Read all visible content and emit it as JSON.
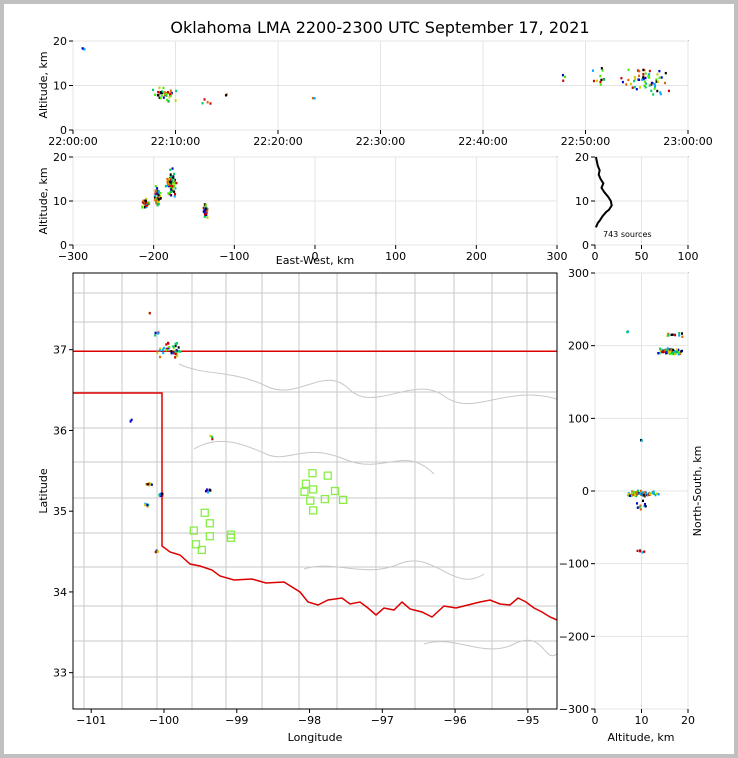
{
  "title": "Oklahoma LMA 2200-2300 UTC September 17, 2021",
  "colors": {
    "state_border": "#dd0000",
    "county_border": "#c8c8c8",
    "station": "#88ee44",
    "hist_line": "#000000",
    "source_palette": [
      "#0000cc",
      "#00aaff",
      "#00cc66",
      "#44ee00",
      "#cccc00",
      "#dd6600",
      "#cc0000",
      "#000000"
    ]
  },
  "chart_data": [
    {
      "id": "time_height",
      "type": "scatter",
      "ylabel": "Altitude, km",
      "ylim": [
        0,
        20
      ],
      "yticks": [
        0,
        10,
        20
      ],
      "xlim_min": [
        0,
        60
      ],
      "xtick_labels": [
        "22:00:00",
        "22:10:00",
        "22:20:00",
        "22:30:00",
        "22:40:00",
        "22:50:00",
        "23:00:00"
      ],
      "xtick_min": [
        0,
        10,
        20,
        30,
        40,
        50,
        60
      ],
      "clusters": [
        {
          "x": 1,
          "y": 18,
          "dx": 0.2,
          "dy": 0.5,
          "n": 3
        },
        {
          "x": 9,
          "y": 8,
          "dx": 1.6,
          "dy": 2.2,
          "n": 40
        },
        {
          "x": 13,
          "y": 6,
          "dx": 0.6,
          "dy": 1.5,
          "n": 4
        },
        {
          "x": 15,
          "y": 8,
          "dx": 0.5,
          "dy": 0.5,
          "n": 2
        },
        {
          "x": 23.5,
          "y": 7,
          "dx": 0.2,
          "dy": 0.4,
          "n": 2
        },
        {
          "x": 48,
          "y": 12,
          "dx": 0.3,
          "dy": 1.5,
          "n": 3
        },
        {
          "x": 51.5,
          "y": 12,
          "dx": 1.0,
          "dy": 3.0,
          "n": 12
        },
        {
          "x": 56,
          "y": 11,
          "dx": 2.8,
          "dy": 4.0,
          "n": 60
        }
      ]
    },
    {
      "id": "ew_altitude",
      "type": "scatter",
      "xlabel": "East-West, km",
      "ylabel": "Altitude, km",
      "xlim": [
        -300,
        300
      ],
      "ylim": [
        0,
        20
      ],
      "xticks": [
        -300,
        -200,
        -100,
        0,
        100,
        200,
        300
      ],
      "yticks": [
        0,
        10,
        20
      ],
      "clusters": [
        {
          "x": -210,
          "y": 9.5,
          "dx": 7,
          "dy": 1.2,
          "n": 40
        },
        {
          "x": -195,
          "y": 11,
          "dx": 6,
          "dy": 3.5,
          "n": 40
        },
        {
          "x": -178,
          "y": 14,
          "dx": 8,
          "dy": 4,
          "n": 70
        },
        {
          "x": -136,
          "y": 8,
          "dx": 4,
          "dy": 2.2,
          "n": 45
        }
      ]
    },
    {
      "id": "altitude_histogram",
      "type": "line",
      "annotation": "743 sources",
      "xlim": [
        0,
        100
      ],
      "ylim": [
        0,
        20
      ],
      "xticks": [
        0,
        50,
        100
      ],
      "yticks": [
        0,
        10,
        20
      ],
      "points": [
        [
          1,
          4
        ],
        [
          3,
          5
        ],
        [
          5,
          5.5
        ],
        [
          8,
          6.5
        ],
        [
          12,
          7.5
        ],
        [
          15,
          8
        ],
        [
          18,
          9
        ],
        [
          17,
          10
        ],
        [
          14,
          11
        ],
        [
          10,
          12
        ],
        [
          7,
          13
        ],
        [
          9,
          14
        ],
        [
          6,
          15
        ],
        [
          4,
          16
        ],
        [
          5,
          17
        ],
        [
          3,
          18
        ],
        [
          2,
          19
        ],
        [
          1,
          20
        ]
      ]
    },
    {
      "id": "plan_view",
      "type": "scatter",
      "xlabel": "Longitude",
      "ylabel": "Latitude",
      "xlim": [
        -101.25,
        -94.6
      ],
      "ylim": [
        32.55,
        37.95
      ],
      "xticks": [
        -101,
        -100,
        -99,
        -98,
        -97,
        -96,
        -95
      ],
      "yticks": [
        33,
        34,
        35,
        36,
        37
      ],
      "clusters": [
        {
          "x": -99.95,
          "y": 37.0,
          "dx": 0.25,
          "dy": 0.15,
          "n": 35
        },
        {
          "x": -100.1,
          "y": 37.2,
          "dx": 0.05,
          "dy": 0.05,
          "n": 4
        },
        {
          "x": -100.2,
          "y": 37.45,
          "dx": 0.05,
          "dy": 0.05,
          "n": 2
        },
        {
          "x": -100.45,
          "y": 36.12,
          "dx": 0.03,
          "dy": 0.03,
          "n": 2
        },
        {
          "x": -99.35,
          "y": 35.9,
          "dx": 0.05,
          "dy": 0.04,
          "n": 4
        },
        {
          "x": -100.2,
          "y": 35.33,
          "dx": 0.1,
          "dy": 0.03,
          "n": 6
        },
        {
          "x": -100.05,
          "y": 35.2,
          "dx": 0.07,
          "dy": 0.05,
          "n": 12
        },
        {
          "x": -99.4,
          "y": 35.25,
          "dx": 0.05,
          "dy": 0.04,
          "n": 8
        },
        {
          "x": -100.25,
          "y": 35.07,
          "dx": 0.08,
          "dy": 0.03,
          "n": 5
        },
        {
          "x": -100.1,
          "y": 34.5,
          "dx": 0.05,
          "dy": 0.03,
          "n": 4
        }
      ],
      "stations": [
        [
          -97.96,
          35.47
        ],
        [
          -97.75,
          35.44
        ],
        [
          -98.05,
          35.34
        ],
        [
          -97.95,
          35.27
        ],
        [
          -98.07,
          35.24
        ],
        [
          -97.65,
          35.25
        ],
        [
          -97.99,
          35.13
        ],
        [
          -97.79,
          35.15
        ],
        [
          -97.54,
          35.14
        ],
        [
          -97.95,
          35.01
        ],
        [
          -99.44,
          34.98
        ],
        [
          -99.37,
          34.85
        ],
        [
          -99.59,
          34.76
        ],
        [
          -99.37,
          34.69
        ],
        [
          -99.08,
          34.71
        ],
        [
          -99.08,
          34.67
        ],
        [
          -99.56,
          34.59
        ],
        [
          -99.48,
          34.52
        ]
      ]
    },
    {
      "id": "altitude_ns",
      "type": "scatter",
      "xlabel": "Altitude, km",
      "ylabel": "North-South, km",
      "xlim": [
        0,
        20
      ],
      "ylim": [
        -300,
        300
      ],
      "xticks": [
        0,
        10,
        20
      ],
      "yticks": [
        -300,
        -200,
        -100,
        0,
        100,
        200,
        300
      ],
      "clusters": [
        {
          "x": 7,
          "y": 220,
          "dx": 0.3,
          "dy": 2,
          "n": 2
        },
        {
          "x": 16,
          "y": 192,
          "dx": 4,
          "dy": 6,
          "n": 60
        },
        {
          "x": 17,
          "y": 215,
          "dx": 3,
          "dy": 4,
          "n": 12
        },
        {
          "x": 10,
          "y": 70,
          "dx": 0.4,
          "dy": 4,
          "n": 4
        },
        {
          "x": 10,
          "y": -4,
          "dx": 5,
          "dy": 5,
          "n": 70
        },
        {
          "x": 10,
          "y": -20,
          "dx": 1.5,
          "dy": 8,
          "n": 10
        },
        {
          "x": 10,
          "y": -83,
          "dx": 1,
          "dy": 2,
          "n": 5
        }
      ]
    }
  ]
}
